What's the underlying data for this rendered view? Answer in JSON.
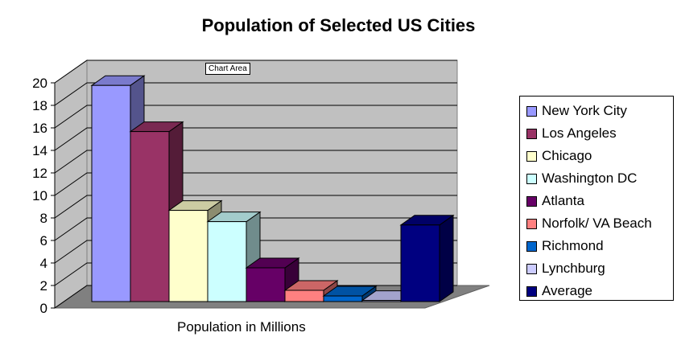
{
  "title": "Population of Selected US Cities",
  "tooltip": "Chart Area",
  "chart_data": {
    "type": "bar",
    "title": "Population of Selected US Cities",
    "xlabel": "Population in Millions",
    "ylabel": "",
    "ylim": [
      0,
      20
    ],
    "yticks": [
      "0",
      "2",
      "4",
      "6",
      "8",
      "10",
      "12",
      "14",
      "16",
      "18",
      "20"
    ],
    "grid": true,
    "legend_position": "right",
    "categories": [
      "Population in Millions"
    ],
    "series": [
      {
        "name": "New York City",
        "values": [
          19.2
        ],
        "color": "#9999ff"
      },
      {
        "name": "Los Angeles",
        "values": [
          15.1
        ],
        "color": "#993366"
      },
      {
        "name": "Chicago",
        "values": [
          8.1
        ],
        "color": "#ffffcc"
      },
      {
        "name": "Washington DC",
        "values": [
          7.1
        ],
        "color": "#ccffff"
      },
      {
        "name": "Atlanta",
        "values": [
          3.0
        ],
        "color": "#660066"
      },
      {
        "name": "Norfolk/ VA Beach",
        "values": [
          1.0
        ],
        "color": "#ff8080"
      },
      {
        "name": "Richmond",
        "values": [
          0.5
        ],
        "color": "#0066cc"
      },
      {
        "name": "Lynchburg",
        "values": [
          0.1
        ],
        "color": "#ccccff"
      },
      {
        "name": "Average",
        "values": [
          6.8
        ],
        "color": "#000080"
      }
    ]
  }
}
